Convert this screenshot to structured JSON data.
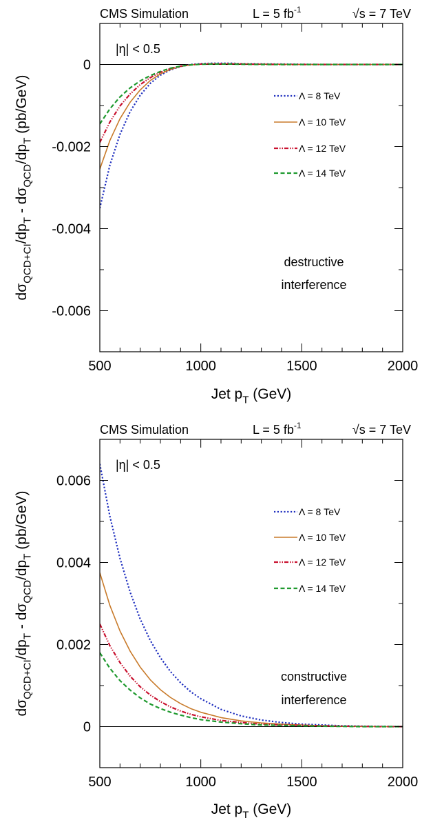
{
  "chart_data": [
    {
      "type": "line",
      "header_left": "CMS Simulation",
      "header_lumi_prefix": "L = 5 fb",
      "header_lumi_exp": "-1",
      "header_sqrts": "√s = 7 TeV",
      "eta_label": "|η| < 0.5",
      "annotation": [
        "destructive",
        "interference"
      ],
      "ylabel": "dσ_QCD+CI/dp_T - dσ_QCD/dp_T (pb/GeV)",
      "ylabel_parts": [
        "dσ",
        "QCD+CI",
        "/dp",
        "T",
        " - dσ",
        "QCD",
        "/dp",
        "T",
        " (pb/GeV)"
      ],
      "xlabel": "Jet p_T (GeV)",
      "xlabel_parts": [
        "Jet p",
        "T",
        " (GeV)"
      ],
      "xlim": [
        500,
        2000
      ],
      "ylim": [
        -0.007,
        0.001
      ],
      "x_ticks": [
        500,
        1000,
        1500,
        2000
      ],
      "x_tick_labels": [
        "500",
        "1000",
        "1500",
        "2000"
      ],
      "y_ticks": [
        -0.006,
        -0.004,
        -0.002,
        0
      ],
      "y_tick_labels": [
        "-0.006",
        "-0.004",
        "-0.002",
        "0"
      ],
      "x": [
        500,
        550,
        600,
        650,
        700,
        750,
        800,
        850,
        900,
        950,
        1000,
        1050,
        1100,
        1150,
        1200,
        1300,
        1400,
        1500,
        1600,
        1700,
        1800,
        1900,
        2000
      ],
      "series": [
        {
          "name": "Λ =  8 TeV",
          "color": "#1f2fbf",
          "dash": "dotted",
          "values": [
            -0.0035,
            -0.00245,
            -0.0017,
            -0.00115,
            -0.00075,
            -0.00046,
            -0.00026,
            -0.00013,
            -5e-05,
            0.0,
            2e-05,
            3e-05,
            3e-05,
            3e-05,
            2e-05,
            1.5e-05,
            1e-05,
            5e-06,
            0.0,
            0.0,
            0.0,
            0.0,
            0.0
          ]
        },
        {
          "name": "Λ = 10 TeV",
          "color": "#c87a2a",
          "dash": "solid",
          "values": [
            -0.00255,
            -0.00185,
            -0.00132,
            -0.00092,
            -0.00062,
            -0.00039,
            -0.00023,
            -0.00012,
            -5e-05,
            -1e-05,
            1e-05,
            2e-05,
            2e-05,
            2e-05,
            1.5e-05,
            1e-05,
            5e-06,
            0.0,
            0.0,
            0.0,
            0.0,
            0.0,
            0.0
          ]
        },
        {
          "name": "Λ = 12 TeV",
          "color": "#c8102e",
          "dash": "dashdotdot",
          "values": [
            -0.0019,
            -0.0014,
            -0.00101,
            -0.00072,
            -0.00049,
            -0.00032,
            -0.00019,
            -0.0001,
            -4e-05,
            -1e-05,
            1e-05,
            1.5e-05,
            1.5e-05,
            1.5e-05,
            1e-05,
            5e-06,
            0.0,
            0.0,
            0.0,
            0.0,
            0.0,
            0.0,
            0.0
          ]
        },
        {
          "name": "Λ = 14 TeV",
          "color": "#1f9a2f",
          "dash": "dashed",
          "values": [
            -0.00145,
            -0.00108,
            -0.00079,
            -0.00057,
            -0.0004,
            -0.00027,
            -0.00017,
            -9e-05,
            -4e-05,
            -1e-05,
            5e-06,
            1e-05,
            1e-05,
            1e-05,
            5e-06,
            0.0,
            0.0,
            0.0,
            0.0,
            0.0,
            0.0,
            0.0,
            0.0
          ]
        }
      ]
    },
    {
      "type": "line",
      "header_left": "CMS Simulation",
      "header_lumi_prefix": "L = 5 fb",
      "header_lumi_exp": "-1",
      "header_sqrts": "√s = 7 TeV",
      "eta_label": "|η| < 0.5",
      "annotation": [
        "constructive",
        "interference"
      ],
      "ylabel": "dσ_QCD+CI/dp_T - dσ_QCD/dp_T (pb/GeV)",
      "ylabel_parts": [
        "dσ",
        "QCD+CI",
        "/dp",
        "T",
        " - dσ",
        "QCD",
        "/dp",
        "T",
        " (pb/GeV)"
      ],
      "xlabel": "Jet p_T (GeV)",
      "xlabel_parts": [
        "Jet p",
        "T",
        " (GeV)"
      ],
      "xlim": [
        500,
        2000
      ],
      "ylim": [
        -0.001,
        0.007
      ],
      "x_ticks": [
        500,
        1000,
        1500,
        2000
      ],
      "x_tick_labels": [
        "500",
        "1000",
        "1500",
        "2000"
      ],
      "y_ticks": [
        0,
        0.002,
        0.004,
        0.006
      ],
      "y_tick_labels": [
        "0",
        "0.002",
        "0.004",
        "0.006"
      ],
      "x": [
        500,
        550,
        600,
        650,
        700,
        750,
        800,
        850,
        900,
        950,
        1000,
        1100,
        1200,
        1300,
        1400,
        1500,
        1600,
        1700,
        1800,
        1900,
        2000
      ],
      "series": [
        {
          "name": "Λ =  8 TeV",
          "color": "#1f2fbf",
          "dash": "dotted",
          "values": [
            0.0064,
            0.00512,
            0.0041,
            0.00328,
            0.00262,
            0.0021,
            0.00168,
            0.00134,
            0.00107,
            0.00085,
            0.00068,
            0.00042,
            0.00026,
            0.00016,
            0.0001,
            6e-05,
            4e-05,
            2e-05,
            1e-05,
            5e-06,
            0.0
          ]
        },
        {
          "name": "Λ = 10 TeV",
          "color": "#c87a2a",
          "dash": "solid",
          "values": [
            0.00375,
            0.00295,
            0.00233,
            0.00184,
            0.00145,
            0.00114,
            0.0009,
            0.00071,
            0.00056,
            0.00044,
            0.00035,
            0.00022,
            0.00014,
            9e-05,
            6e-05,
            4e-05,
            2e-05,
            1e-05,
            5e-06,
            0.0,
            0.0
          ]
        },
        {
          "name": "Λ = 12 TeV",
          "color": "#c8102e",
          "dash": "dashdotdot",
          "values": [
            0.0025,
            0.00197,
            0.00156,
            0.00123,
            0.00097,
            0.00077,
            0.00061,
            0.00048,
            0.00038,
            0.0003,
            0.00024,
            0.00015,
            0.0001,
            6e-05,
            4e-05,
            3e-05,
            2e-05,
            1e-05,
            5e-06,
            0.0,
            0.0
          ]
        },
        {
          "name": "Λ = 14 TeV",
          "color": "#1f9a2f",
          "dash": "dashed",
          "values": [
            0.0018,
            0.00142,
            0.00112,
            0.00089,
            0.0007,
            0.00055,
            0.00044,
            0.00035,
            0.00028,
            0.00022,
            0.00017,
            0.00011,
            7e-05,
            4e-05,
            3e-05,
            2e-05,
            1e-05,
            5e-06,
            0.0,
            0.0,
            0.0
          ]
        }
      ]
    }
  ]
}
